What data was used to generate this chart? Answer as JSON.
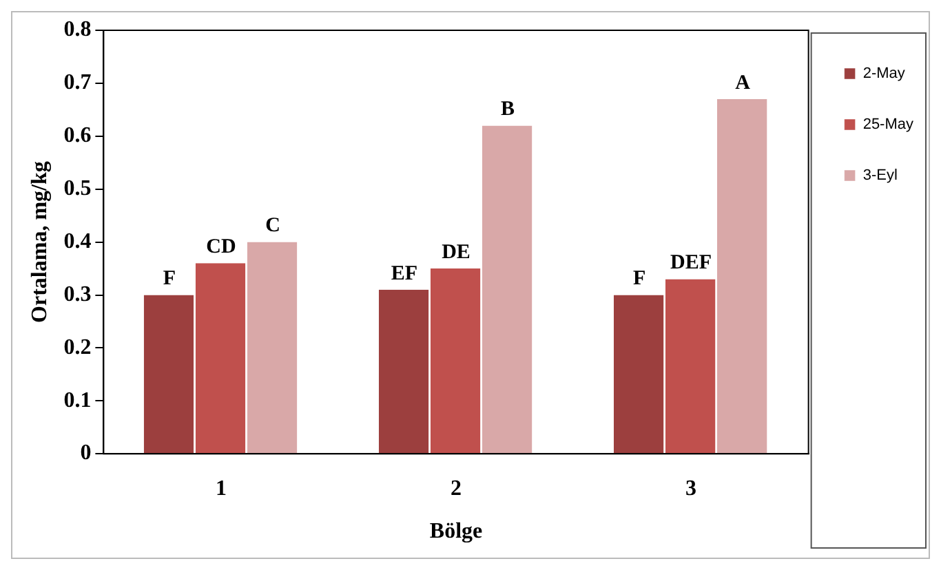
{
  "chart_data": {
    "type": "bar",
    "xlabel": "Bölge",
    "ylabel": "Ortalama, mg/kg",
    "categories": [
      "1",
      "2",
      "3"
    ],
    "series": [
      {
        "name": "2-May",
        "color": "#9c3f3e",
        "values": [
          0.3,
          0.31,
          0.3
        ],
        "value_labels": [
          "F",
          "EF",
          "F"
        ]
      },
      {
        "name": "25-May",
        "color": "#c0504d",
        "values": [
          0.36,
          0.35,
          0.33
        ],
        "value_labels": [
          "CD",
          "DE",
          "DEF"
        ]
      },
      {
        "name": "3-Eyl",
        "color": "#d9a8a8",
        "values": [
          0.4,
          0.62,
          0.67
        ],
        "value_labels": [
          "C",
          "B",
          "A"
        ]
      }
    ],
    "ylim": [
      0,
      0.8
    ],
    "yticks": [
      0,
      0.1,
      0.2,
      0.3,
      0.4,
      0.5,
      0.6,
      0.7,
      0.8
    ],
    "grid": false,
    "legend": "right"
  }
}
